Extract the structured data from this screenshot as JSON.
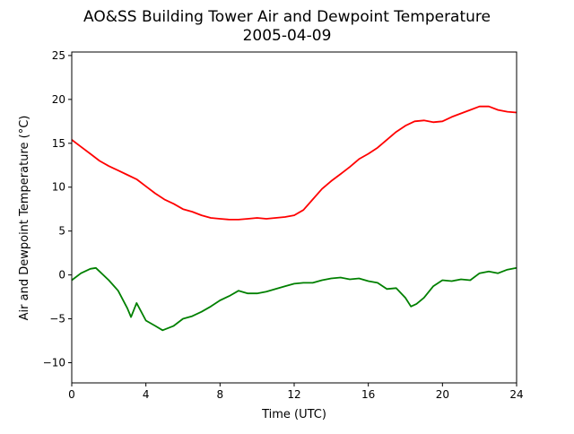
{
  "chart_data": {
    "type": "line",
    "title": "AO&SS Building Tower Air and Dewpoint Temperature",
    "subtitle": "2005-04-09",
    "xlabel": "Time (UTC)",
    "ylabel": "Air and Dewpoint Temperature (°C)",
    "xlim": [
      0,
      24
    ],
    "ylim": [
      -12.3,
      25.4
    ],
    "x_ticks": [
      0,
      4,
      8,
      12,
      16,
      20,
      24
    ],
    "y_ticks": [
      -10,
      -5,
      0,
      5,
      10,
      15,
      20,
      25
    ],
    "grid": false,
    "legend": "none",
    "series": [
      {
        "color": "#ff0000",
        "x": [
          0,
          0.5,
          1,
          1.5,
          2,
          2.5,
          3,
          3.5,
          4,
          4.5,
          5,
          5.5,
          6,
          6.5,
          7,
          7.5,
          8,
          8.5,
          9,
          9.5,
          10,
          10.5,
          11,
          11.5,
          12,
          12.5,
          13,
          13.5,
          14,
          14.5,
          15,
          15.5,
          16,
          16.5,
          17,
          17.5,
          18,
          18.5,
          19,
          19.5,
          20,
          20.5,
          21,
          21.5,
          22,
          22.5,
          23,
          23.5,
          24
        ],
        "y": [
          15.4,
          14.6,
          13.8,
          13.0,
          12.4,
          11.9,
          11.4,
          10.9,
          10.1,
          9.3,
          8.6,
          8.1,
          7.5,
          7.2,
          6.8,
          6.5,
          6.4,
          6.3,
          6.3,
          6.4,
          6.5,
          6.4,
          6.5,
          6.6,
          6.8,
          7.4,
          8.6,
          9.8,
          10.7,
          11.5,
          12.3,
          13.2,
          13.8,
          14.5,
          15.4,
          16.3,
          17.0,
          17.5,
          17.6,
          17.4,
          17.5,
          18.0,
          18.4,
          18.8,
          19.2,
          19.2,
          18.8,
          18.6,
          18.5
        ]
      },
      {
        "color": "#008000",
        "x": [
          0,
          0.5,
          1,
          1.3,
          1.5,
          2,
          2.5,
          3,
          3.2,
          3.5,
          4,
          4.5,
          4.9,
          5.5,
          6,
          6.5,
          7,
          7.5,
          8,
          8.5,
          9,
          9.5,
          10,
          10.5,
          11,
          11.5,
          12,
          12.5,
          13,
          13.5,
          14,
          14.5,
          15,
          15.5,
          16,
          16.5,
          17,
          17.5,
          18,
          18.3,
          18.6,
          19,
          19.5,
          20,
          20.5,
          21,
          21.5,
          22,
          22.5,
          23,
          23.5,
          24
        ],
        "y": [
          -0.6,
          0.2,
          0.7,
          0.8,
          0.4,
          -0.6,
          -1.8,
          -3.8,
          -4.8,
          -3.2,
          -5.2,
          -5.8,
          -6.3,
          -5.8,
          -5.0,
          -4.7,
          -4.2,
          -3.6,
          -2.9,
          -2.4,
          -1.8,
          -2.1,
          -2.1,
          -1.9,
          -1.6,
          -1.3,
          -1.0,
          -0.9,
          -0.9,
          -0.6,
          -0.4,
          -0.3,
          -0.5,
          -0.4,
          -0.7,
          -0.9,
          -1.6,
          -1.5,
          -2.6,
          -3.6,
          -3.3,
          -2.6,
          -1.3,
          -0.6,
          -0.7,
          -0.5,
          -0.6,
          0.2,
          0.4,
          0.2,
          0.6,
          0.8
        ]
      }
    ]
  }
}
